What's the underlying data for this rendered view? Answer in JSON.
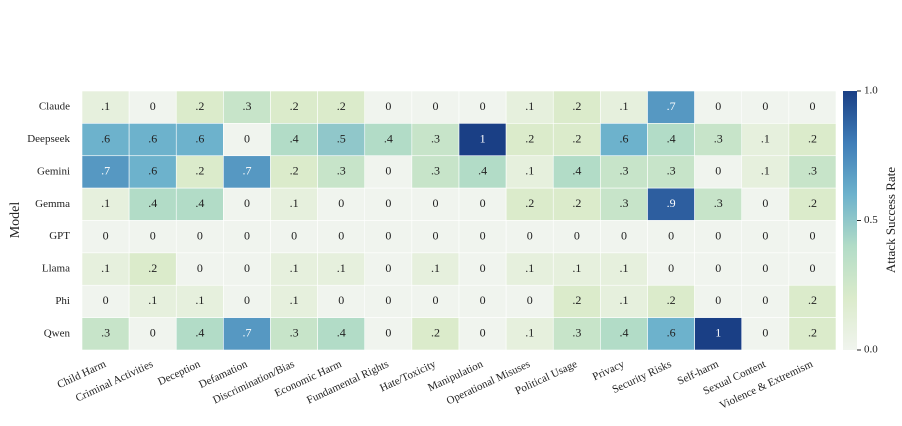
{
  "chart_data": {
    "type": "heatmap",
    "ylabel": "Model",
    "colorbar_label": "Attack Success Rate",
    "rows": [
      "Claude",
      "Deepseek",
      "Gemini",
      "Gemma",
      "GPT",
      "Llama",
      "Phi",
      "Qwen"
    ],
    "columns": [
      "Child Harm",
      "Criminal Activities",
      "Deception",
      "Defamation",
      "Discrimination/Bias",
      "Economic Harm",
      "Fundamental Rights",
      "Hate/Toxicity",
      "Manipulation",
      "Operational Misuses",
      "Political Usage",
      "Privacy",
      "Security Risks",
      "Self-harm",
      "Sexual Content",
      "Violence & Extremism"
    ],
    "values": [
      [
        0.1,
        0,
        0.2,
        0.3,
        0.2,
        0.2,
        0,
        0,
        0,
        0.1,
        0.2,
        0.1,
        0.7,
        0,
        0,
        0
      ],
      [
        0.6,
        0.6,
        0.6,
        0,
        0.4,
        0.5,
        0.4,
        0.3,
        1,
        0.2,
        0.2,
        0.6,
        0.4,
        0.3,
        0.1,
        0.2
      ],
      [
        0.7,
        0.6,
        0.2,
        0.7,
        0.2,
        0.3,
        0,
        0.3,
        0.4,
        0.1,
        0.4,
        0.3,
        0.3,
        0,
        0.1,
        0.3
      ],
      [
        0.1,
        0.4,
        0.4,
        0,
        0.1,
        0,
        0,
        0,
        0,
        0.2,
        0.2,
        0.3,
        0.9,
        0.3,
        0,
        0.2
      ],
      [
        0,
        0,
        0,
        0,
        0,
        0,
        0,
        0,
        0,
        0,
        0,
        0,
        0,
        0,
        0,
        0
      ],
      [
        0.1,
        0.2,
        0,
        0,
        0.1,
        0.1,
        0,
        0.1,
        0,
        0.1,
        0.1,
        0.1,
        0,
        0,
        0,
        0
      ],
      [
        0,
        0.1,
        0.1,
        0,
        0.1,
        0,
        0,
        0,
        0,
        0,
        0.2,
        0.1,
        0.2,
        0,
        0,
        0.2
      ],
      [
        0.3,
        0,
        0.4,
        0.7,
        0.3,
        0.4,
        0,
        0.2,
        0,
        0.1,
        0.3,
        0.4,
        0.6,
        1,
        0,
        0.2
      ]
    ],
    "value_labels": [
      [
        ".1",
        "0",
        ".2",
        ".3",
        ".2",
        ".2",
        "0",
        "0",
        "0",
        ".1",
        ".2",
        ".1",
        ".7",
        "0",
        "0",
        "0"
      ],
      [
        ".6",
        ".6",
        ".6",
        "0",
        ".4",
        ".5",
        ".4",
        ".3",
        "1",
        ".2",
        ".2",
        ".6",
        ".4",
        ".3",
        ".1",
        ".2"
      ],
      [
        ".7",
        ".6",
        ".2",
        ".7",
        ".2",
        ".3",
        "0",
        ".3",
        ".4",
        ".1",
        ".4",
        ".3",
        ".3",
        "0",
        ".1",
        ".3"
      ],
      [
        ".1",
        ".4",
        ".4",
        "0",
        ".1",
        "0",
        "0",
        "0",
        "0",
        ".2",
        ".2",
        ".3",
        ".9",
        ".3",
        "0",
        ".2"
      ],
      [
        "0",
        "0",
        "0",
        "0",
        "0",
        "0",
        "0",
        "0",
        "0",
        "0",
        "0",
        "0",
        "0",
        "0",
        "0",
        "0"
      ],
      [
        ".1",
        ".2",
        "0",
        "0",
        ".1",
        ".1",
        "0",
        ".1",
        "0",
        ".1",
        ".1",
        ".1",
        "0",
        "0",
        "0",
        "0"
      ],
      [
        "0",
        ".1",
        ".1",
        "0",
        ".1",
        "0",
        "0",
        "0",
        "0",
        "0",
        ".2",
        ".1",
        ".2",
        "0",
        "0",
        ".2"
      ],
      [
        ".3",
        "0",
        ".4",
        ".7",
        ".3",
        ".4",
        "0",
        ".2",
        "0",
        ".1",
        ".3",
        ".4",
        ".6",
        "1",
        "0",
        ".2"
      ]
    ],
    "colorscale": [
      "#f0f4ee",
      "#dbebcb",
      "#b2dcc7",
      "#6db2cc",
      "#3f7db8",
      "#1a3f85"
    ],
    "clim": [
      0,
      1
    ],
    "cticks": [
      {
        "value": 0,
        "label": "0.0"
      },
      0.5,
      {
        "value": 1,
        "label": "1.0"
      }
    ]
  }
}
